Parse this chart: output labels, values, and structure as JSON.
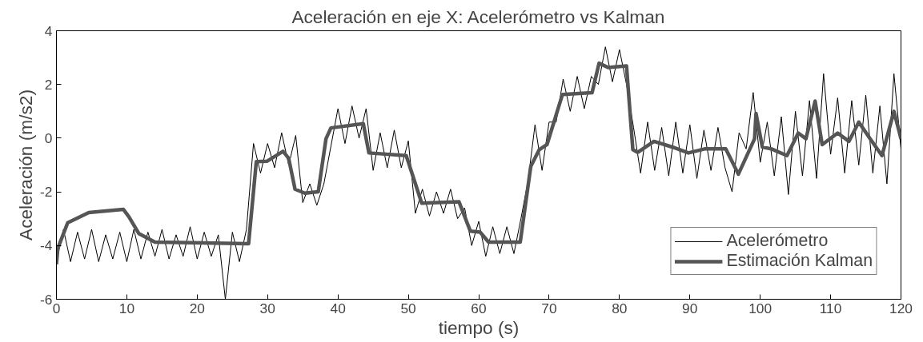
{
  "chart_data": {
    "type": "line",
    "title": "Aceleración en eje X: Acelerómetro vs Kalman",
    "xlabel": "tiempo (s)",
    "ylabel": "Aceleración (m/s2)",
    "xlim": [
      0,
      120
    ],
    "ylim": [
      -6,
      4
    ],
    "xticks": [
      0,
      10,
      20,
      30,
      40,
      50,
      60,
      70,
      80,
      90,
      100,
      110,
      120
    ],
    "yticks": [
      -6,
      -4,
      -2,
      0,
      2,
      4
    ],
    "grid": false,
    "legend": "bottom right",
    "line_style": "solid",
    "marker": "none",
    "series": [
      {
        "name": "Acelerómetro",
        "color": "#000000",
        "x": [
          0,
          1,
          2,
          3,
          4,
          5,
          6,
          7,
          8,
          9,
          10,
          11,
          12,
          13,
          14,
          15,
          16,
          17,
          18,
          19,
          20,
          21,
          22,
          23,
          24,
          25,
          26,
          27,
          28,
          29,
          30,
          31,
          32,
          33,
          34,
          35,
          36,
          37,
          38,
          39,
          40,
          41,
          42,
          43,
          44,
          45,
          46,
          47,
          48,
          49,
          50,
          51,
          52,
          53,
          54,
          55,
          56,
          57,
          58,
          59,
          60,
          61,
          62,
          63,
          64,
          65,
          66,
          67,
          68,
          69,
          70,
          71,
          72,
          73,
          74,
          75,
          76,
          77,
          78,
          79,
          80,
          81,
          82,
          83,
          84,
          85,
          86,
          87,
          88,
          89,
          90,
          91,
          92,
          93,
          94,
          95,
          96,
          97,
          98,
          99,
          100,
          101,
          102,
          103,
          104,
          105,
          106,
          107,
          108,
          109,
          110,
          111,
          112,
          113,
          114,
          115,
          116,
          117,
          118,
          119,
          120
        ],
        "values": [
          -4.6,
          -3.4,
          -4.6,
          -3.5,
          -4.5,
          -3.4,
          -4.6,
          -3.6,
          -4.5,
          -3.5,
          -4.6,
          -3.4,
          -4.5,
          -3.5,
          -4.4,
          -3.4,
          -4.5,
          -3.6,
          -4.4,
          -3.3,
          -4.5,
          -3.5,
          -4.4,
          -3.6,
          -6,
          -3.5,
          -4.6,
          -3.4,
          -0.2,
          -1.3,
          -0.2,
          -1.1,
          0.2,
          -1.0,
          0.1,
          -2.4,
          -1.7,
          -2.5,
          -1.7,
          -0.3,
          1.1,
          -0.2,
          1.2,
          0.0,
          1.1,
          -1.2,
          0.2,
          -1.1,
          0.3,
          -1.1,
          -0.1,
          -2.8,
          -1.9,
          -2.9,
          -2.0,
          -2.8,
          -1.9,
          -3.0,
          -2.6,
          -4.0,
          -3.1,
          -4.4,
          -3.3,
          -4.3,
          -3.3,
          -4.3,
          -3.0,
          -1.6,
          0.5,
          -1.2,
          0.6,
          0.6,
          2.2,
          1.0,
          2.3,
          1.1,
          2.3,
          2.0,
          3.4,
          2.1,
          3.3,
          2.0,
          0.4,
          -1.3,
          0.6,
          -1.2,
          0.4,
          -1.4,
          0.6,
          -1.3,
          0.5,
          -1.5,
          0.3,
          -1.2,
          0.4,
          -1.1,
          -2.0,
          0.2,
          -0.4,
          1.7,
          -0.9,
          0.6,
          -1.4,
          0.8,
          -2.1,
          1.0,
          -1.4,
          1.4,
          -1.5,
          2.4,
          -0.6,
          1.5,
          -1.3,
          1.4,
          -1.0,
          1.6,
          -1.3,
          1.2,
          -1.7,
          2.4,
          -0.4
        ]
      },
      {
        "name": "Estimación Kalman",
        "color": "#555555",
        "x": [
          0,
          0.2,
          1.6,
          4.6,
          9.5,
          10.3,
          11.7,
          14,
          27.3,
          28.4,
          29.9,
          32.2,
          33,
          33.9,
          35.3,
          37.2,
          38.3,
          39,
          43.6,
          44.4,
          49.7,
          51.9,
          57.2,
          58.8,
          60.2,
          61.4,
          65.9,
          67.4,
          68.6,
          69.7,
          71.9,
          76.1,
          77.1,
          78.4,
          81,
          81.9,
          82.6,
          84.9,
          87.5,
          89.8,
          92.1,
          95.1,
          96.9,
          99.2,
          99.4,
          100.3,
          101.6,
          103.8,
          105.4,
          106.5,
          107.8,
          108.8,
          111,
          112.6,
          114,
          115.6,
          117.3,
          119,
          120
        ],
        "values": [
          -4.7,
          -4.1,
          -3.15,
          -2.77,
          -2.65,
          -2.93,
          -3.55,
          -3.87,
          -3.93,
          -0.87,
          -0.86,
          -0.49,
          -0.75,
          -1.9,
          -2.05,
          -2.0,
          -0.02,
          0.38,
          0.54,
          -0.55,
          -0.65,
          -2.42,
          -2.37,
          -3.46,
          -3.5,
          -3.87,
          -3.87,
          -1.05,
          -0.43,
          -0.24,
          1.63,
          1.69,
          2.79,
          2.63,
          2.69,
          -0.43,
          -0.53,
          -0.12,
          -0.33,
          -0.55,
          -0.4,
          -0.4,
          -1.34,
          -0.02,
          0.92,
          -0.33,
          -0.4,
          -0.65,
          0.19,
          -0.02,
          1.38,
          -0.24,
          0.19,
          -0.12,
          0.6,
          -0.02,
          -0.65,
          1.0,
          -0.02
        ]
      }
    ]
  }
}
